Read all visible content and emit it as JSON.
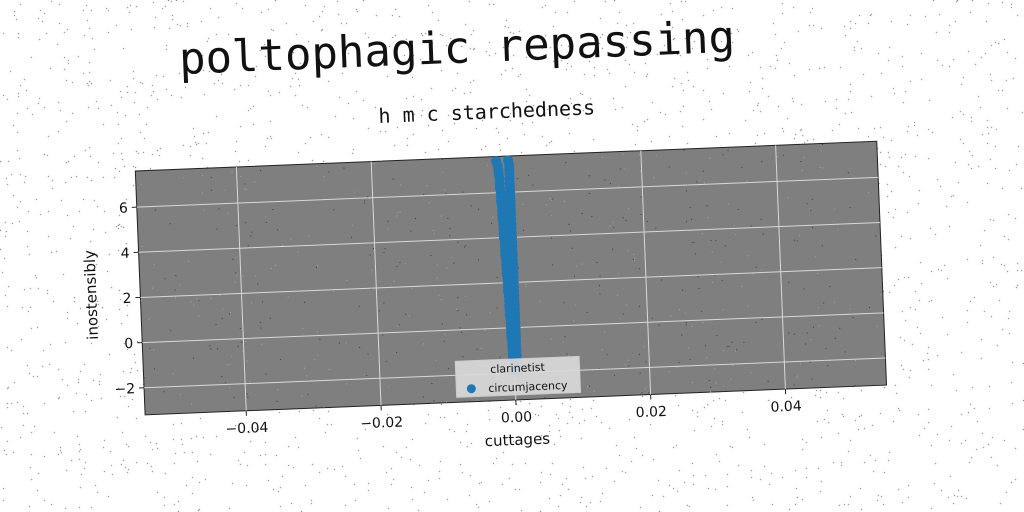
{
  "title": "poltophagic repassing",
  "subtitle": "h m c starchedness",
  "chart_data": {
    "type": "scatter",
    "xlabel": "cuttages",
    "ylabel": "inostensibly",
    "xlim": [
      -0.055,
      0.055
    ],
    "ylim": [
      -3.2,
      7.6
    ],
    "xticks": [
      -0.04,
      -0.02,
      0.0,
      0.02,
      0.04
    ],
    "xtick_labels": [
      "−0.04",
      "−0.02",
      "0.00",
      "0.02",
      "0.04"
    ],
    "yticks": [
      -2,
      0,
      2,
      4,
      6
    ],
    "ytick_labels": [
      "−2",
      "0",
      "2",
      "4",
      "6"
    ],
    "grid": true,
    "legend": {
      "title": "clarinetist",
      "placement": "lower-center"
    },
    "series": [
      {
        "name": "circumjacency",
        "color": "#1f77b4",
        "points": [
          [
            -0.0015,
            7.4
          ],
          [
            -0.0013,
            7.2
          ],
          [
            -0.0012,
            7.0
          ],
          [
            -0.0012,
            6.8
          ],
          [
            -0.0011,
            6.6
          ],
          [
            -0.0011,
            6.4
          ],
          [
            -0.0011,
            6.2
          ],
          [
            -0.001,
            6.0
          ],
          [
            -0.001,
            5.8
          ],
          [
            -0.001,
            5.6
          ],
          [
            -0.0009,
            5.4
          ],
          [
            -0.0009,
            5.2
          ],
          [
            -0.0009,
            5.0
          ],
          [
            -0.0009,
            4.8
          ],
          [
            -0.0008,
            4.6
          ],
          [
            -0.0008,
            4.4
          ],
          [
            -0.0008,
            4.2
          ],
          [
            -0.0008,
            4.0
          ],
          [
            -0.0007,
            3.8
          ],
          [
            -0.0007,
            3.6
          ],
          [
            -0.0007,
            3.4
          ],
          [
            -0.0007,
            3.2
          ],
          [
            -0.0006,
            3.0
          ],
          [
            -0.0006,
            2.8
          ],
          [
            -0.0006,
            2.6
          ],
          [
            -0.0006,
            2.4
          ],
          [
            -0.0005,
            2.2
          ],
          [
            -0.0005,
            2.0
          ],
          [
            -0.0005,
            1.8
          ],
          [
            -0.0005,
            1.6
          ],
          [
            -0.0004,
            1.4
          ],
          [
            -0.0004,
            1.2
          ],
          [
            -0.0004,
            1.0
          ],
          [
            -0.0004,
            0.8
          ],
          [
            -0.0004,
            0.6
          ],
          [
            -0.0003,
            0.4
          ],
          [
            -0.0003,
            0.2
          ],
          [
            -0.0003,
            0.0
          ],
          [
            -0.0003,
            -0.2
          ],
          [
            -0.0003,
            -0.4
          ],
          [
            -0.0002,
            -0.6
          ],
          [
            -0.0002,
            -0.8
          ],
          [
            -0.0002,
            -1.0
          ],
          [
            -0.0002,
            -1.2
          ],
          [
            -0.0002,
            -1.4
          ],
          [
            -0.0001,
            -1.6
          ],
          [
            -0.0001,
            -1.8
          ],
          [
            -0.0001,
            -2.0
          ],
          [
            0.0003,
            7.4
          ],
          [
            0.0004,
            7.2
          ],
          [
            0.0004,
            7.0
          ],
          [
            0.0004,
            6.8
          ],
          [
            0.0004,
            6.6
          ],
          [
            0.0004,
            6.4
          ],
          [
            0.0004,
            6.2
          ],
          [
            0.0004,
            6.0
          ],
          [
            0.0004,
            5.8
          ],
          [
            0.0004,
            5.6
          ],
          [
            0.0004,
            5.4
          ],
          [
            0.0004,
            5.2
          ],
          [
            0.0004,
            5.0
          ],
          [
            0.0004,
            4.8
          ],
          [
            0.0004,
            4.6
          ],
          [
            0.0004,
            4.4
          ],
          [
            0.0004,
            4.2
          ],
          [
            0.0004,
            4.0
          ],
          [
            0.0004,
            3.8
          ],
          [
            0.0004,
            3.6
          ],
          [
            0.0004,
            3.4
          ],
          [
            0.0004,
            3.2
          ],
          [
            0.0004,
            3.0
          ],
          [
            0.0004,
            2.8
          ],
          [
            0.0004,
            2.6
          ],
          [
            0.0004,
            2.4
          ],
          [
            0.0004,
            2.2
          ],
          [
            0.0004,
            2.0
          ],
          [
            0.0004,
            1.8
          ],
          [
            0.0004,
            1.6
          ],
          [
            0.0004,
            1.4
          ],
          [
            0.0004,
            1.2
          ],
          [
            0.0004,
            1.0
          ],
          [
            0.0004,
            0.8
          ],
          [
            0.0004,
            0.6
          ],
          [
            0.0004,
            0.4
          ],
          [
            0.0004,
            0.2
          ],
          [
            0.0004,
            0.0
          ],
          [
            0.0004,
            -0.2
          ],
          [
            0.0004,
            -0.4
          ],
          [
            0.0004,
            -0.6
          ],
          [
            0.0004,
            -0.8
          ],
          [
            0.0004,
            -1.0
          ],
          [
            0.0004,
            -1.2
          ],
          [
            0.0004,
            -1.4
          ],
          [
            0.0004,
            -1.6
          ],
          [
            0.0004,
            -1.8
          ],
          [
            0.0004,
            -2.0
          ]
        ]
      }
    ]
  }
}
